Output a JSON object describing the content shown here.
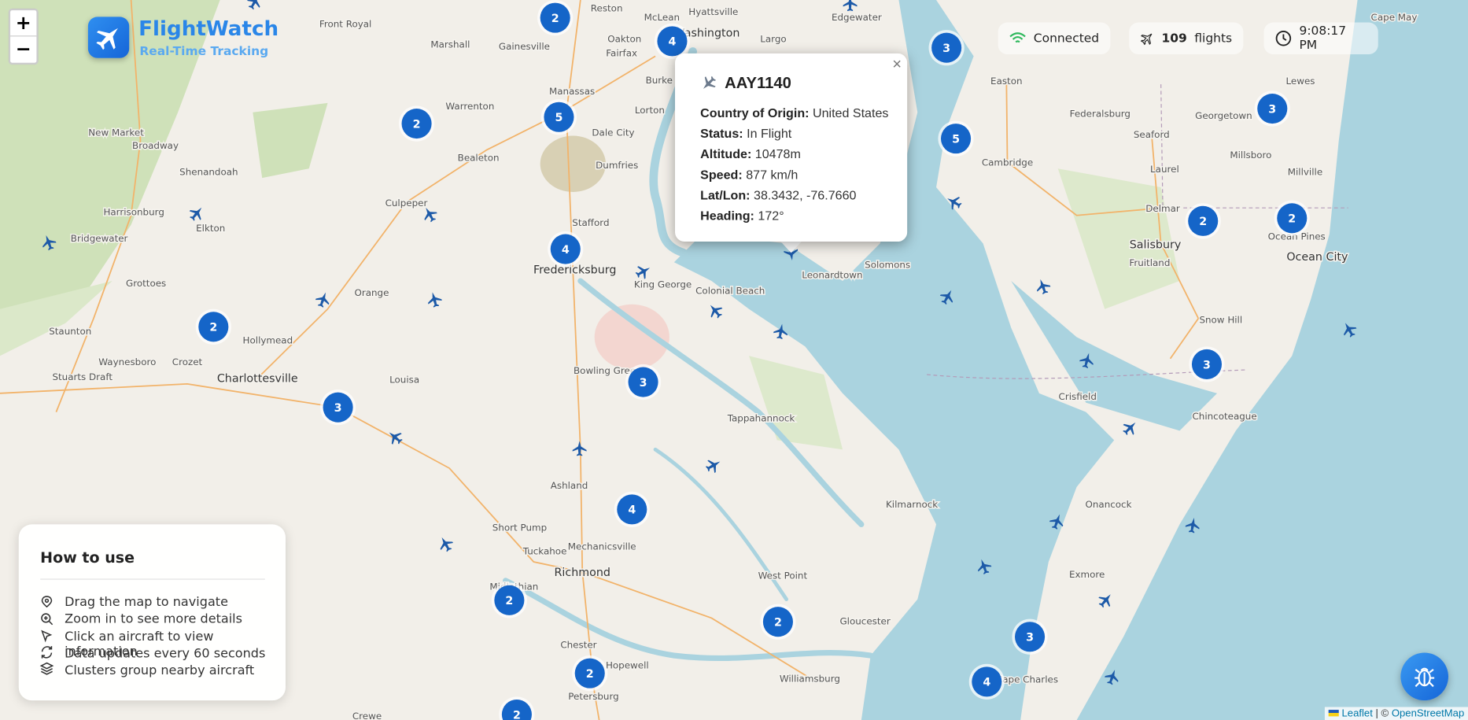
{
  "header": {
    "title": "FlightWatch",
    "subtitle": "Real-Time Tracking"
  },
  "zoom_controls": {
    "zoom_in": "+",
    "zoom_out": "−"
  },
  "status": {
    "connection": "Connected",
    "flight_count": 109,
    "flights_label": "flights",
    "time": "9:08:17 PM"
  },
  "popup": {
    "callsign": "AAY1140",
    "close": "×",
    "fields": [
      {
        "label": "Country of Origin:",
        "value": "United States"
      },
      {
        "label": "Status:",
        "value": "In Flight"
      },
      {
        "label": "Altitude:",
        "value": "10478m"
      },
      {
        "label": "Speed:",
        "value": "877 km/h"
      },
      {
        "label": "Lat/Lon:",
        "value": "38.3432, -76.7660"
      },
      {
        "label": "Heading:",
        "value": "172°"
      }
    ]
  },
  "help": {
    "title": "How to use",
    "items": [
      "Drag the map to navigate",
      "Zoom in to see more details",
      "Click an aircraft to view information",
      "Data updates every 60 seconds",
      "Clusters group nearby aircraft"
    ]
  },
  "clusters": [
    2,
    4,
    3,
    2,
    5,
    5,
    3,
    2,
    2,
    4,
    2,
    3,
    3,
    3,
    4,
    2,
    2,
    3,
    2,
    4,
    2
  ],
  "map_labels": [
    "Front Royal",
    "Marshall",
    "Reston",
    "McLean",
    "Hyattsville",
    "Oakton",
    "Fairfax",
    "Washington",
    "Largo",
    "Edgewater",
    "Gainesville",
    "Warrenton",
    "Manassas",
    "Burke",
    "Lorton",
    "Dale City",
    "New Market",
    "Broadway",
    "Bealeton",
    "Dumfries",
    "Shenandoah",
    "Culpeper",
    "Harrisonburg",
    "Elkton",
    "Bridgewater",
    "Stafford",
    "Fredericksburg",
    "King George",
    "Colonial Beach",
    "Leonardtown",
    "Solomons",
    "Grottoes",
    "Orange",
    "Staunton",
    "Hollymead",
    "Waynesboro",
    "Crozet",
    "Stuarts Draft",
    "Charlottesville",
    "Louisa",
    "Bowling Green",
    "Tappahannock",
    "Easton",
    "Lewes",
    "Georgetown",
    "Federalsburg",
    "Seaford",
    "Cambridge",
    "Laurel",
    "Millsboro",
    "Millville",
    "Delmar",
    "Salisbury",
    "Ocean Pines",
    "Ocean City",
    "Fruitland",
    "Snow Hill",
    "Crisfield",
    "Chincoteague",
    "Ashland",
    "Kilmarnock",
    "Short Pump",
    "Mechanicsville",
    "Tuckahoe",
    "Richmond",
    "Onancock",
    "West Point",
    "Exmore",
    "Midlothian",
    "Gloucester",
    "Chester",
    "Hopewell",
    "Williamsburg",
    "Petersburg",
    "Cape Charles",
    "Crewe",
    "Cape May"
  ],
  "attribution": {
    "leaflet": "Leaflet",
    "separator": "| ©",
    "osm": "OpenStreetMap"
  }
}
